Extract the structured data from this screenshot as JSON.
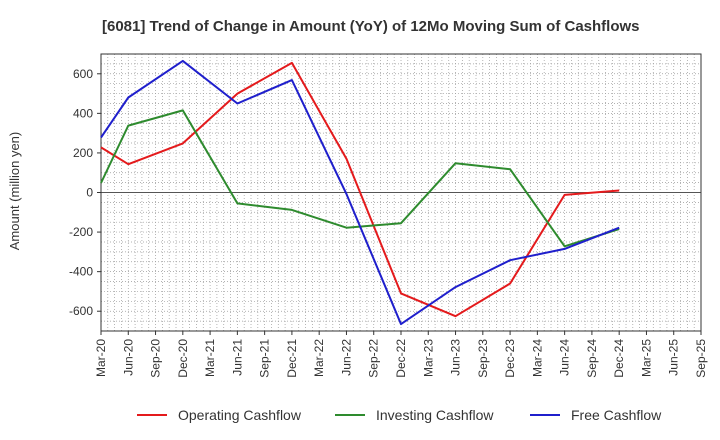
{
  "chart_data": {
    "type": "line",
    "title": "[6081]  Trend of Change in Amount (YoY) of 12Mo Moving Sum of Cashflows",
    "xlabel": "",
    "ylabel": "Amount (million yen)",
    "ylim": [
      -700,
      700
    ],
    "yticks": [
      -600,
      -400,
      -200,
      0,
      200,
      400,
      600
    ],
    "grid": true,
    "legend_position": "bottom",
    "categories": [
      "Mar-20",
      "Jun-20",
      "Sep-20",
      "Dec-20",
      "Mar-21",
      "Jun-21",
      "Sep-21",
      "Dec-21",
      "Mar-22",
      "Jun-22",
      "Sep-22",
      "Dec-22",
      "Mar-23",
      "Jun-23",
      "Sep-23",
      "Dec-23",
      "Mar-24",
      "Jun-24",
      "Sep-24",
      "Dec-24",
      "Mar-25",
      "Jun-25",
      "Sep-25"
    ],
    "series": [
      {
        "name": "Operating Cashflow",
        "color": "#e41a1c",
        "values": [
          228,
          143,
          null,
          248,
          null,
          500,
          null,
          655,
          null,
          170,
          null,
          -510,
          null,
          -625,
          null,
          -460,
          null,
          -12,
          null,
          10,
          null,
          null,
          null
        ]
      },
      {
        "name": "Investing Cashflow",
        "color": "#2e8b2e",
        "values": [
          48,
          338,
          null,
          415,
          null,
          -55,
          null,
          -88,
          null,
          -178,
          null,
          -155,
          null,
          148,
          null,
          118,
          null,
          -272,
          null,
          -185,
          null,
          null,
          null
        ]
      },
      {
        "name": "Free Cashflow",
        "color": "#1f1fcc",
        "values": [
          278,
          480,
          null,
          665,
          null,
          450,
          null,
          568,
          null,
          -8,
          null,
          -665,
          null,
          -478,
          null,
          -342,
          null,
          -285,
          null,
          -178,
          null,
          null,
          null
        ]
      }
    ]
  }
}
